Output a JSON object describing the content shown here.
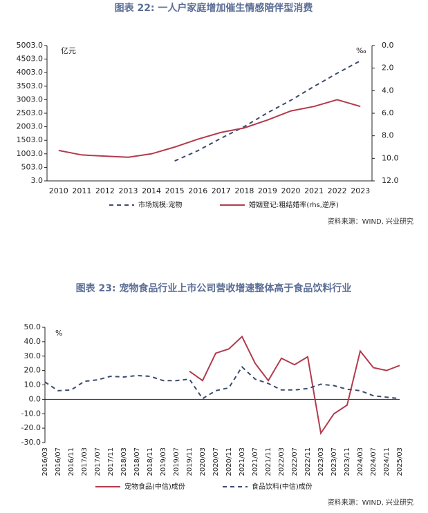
{
  "chart_data": [
    {
      "type": "line",
      "title": "图表 22: 一人户家庭增加催生情感陪伴型消费",
      "y_label": "亿元",
      "y2_label": "‰",
      "categories": [
        "2010",
        "2011",
        "2012",
        "2013",
        "2014",
        "2015",
        "2016",
        "2017",
        "2018",
        "2019",
        "2020",
        "2021",
        "2022",
        "2023"
      ],
      "series": [
        {
          "name": "市场规模:宠物",
          "color": "#3c4a6e",
          "dash": true,
          "axis": "y",
          "values": [
            null,
            null,
            null,
            null,
            null,
            740,
            1120,
            1580,
            2010,
            2520,
            2980,
            3490,
            3980,
            4440
          ]
        },
        {
          "name": "婚姻登记:粗结婚率(rhs,逆序)",
          "color": "#b33a4c",
          "dash": false,
          "axis": "y2",
          "values": [
            9.3,
            9.7,
            9.8,
            9.9,
            9.6,
            9.0,
            8.3,
            7.7,
            7.3,
            6.6,
            5.8,
            5.4,
            4.8,
            5.4
          ]
        }
      ],
      "ylim": [
        3,
        5003
      ],
      "yticks": [
        {
          "value": 3,
          "label": "3.0"
        },
        {
          "value": 503,
          "label": "503.0"
        },
        {
          "value": 1003,
          "label": "1003.0"
        },
        {
          "value": 1503,
          "label": "1503.0"
        },
        {
          "value": 2003,
          "label": "2003.0"
        },
        {
          "value": 2503,
          "label": "2503.0"
        },
        {
          "value": 3003,
          "label": "3003.0"
        },
        {
          "value": 3503,
          "label": "3503.0"
        },
        {
          "value": 4003,
          "label": "4003.0"
        },
        {
          "value": 4503,
          "label": "4503.0"
        },
        {
          "value": 5003,
          "label": "5003.0"
        }
      ],
      "y2lim": [
        12,
        0
      ],
      "y2ticks": [
        {
          "value": 0,
          "label": "0.0"
        },
        {
          "value": 2,
          "label": "2.0"
        },
        {
          "value": 4,
          "label": "4.0"
        },
        {
          "value": 6,
          "label": "6.0"
        },
        {
          "value": 8,
          "label": "8.0"
        },
        {
          "value": 10,
          "label": "10.0"
        },
        {
          "value": 12,
          "label": "12.0"
        }
      ],
      "source": "资料来源：WIND, 兴业研究"
    },
    {
      "type": "line",
      "title": "图表 23: 宠物食品行业上市公司营收增速整体高于食品饮料行业",
      "y_label": "%",
      "categories": [
        "2016/03",
        "2016/07",
        "2016/11",
        "2017/03",
        "2017/07",
        "2017/11",
        "2018/03",
        "2018/07",
        "2018/11",
        "2019/03",
        "2019/07",
        "2019/11",
        "2020/03",
        "2020/07",
        "2020/11",
        "2021/03",
        "2021/07",
        "2021/11",
        "2022/03",
        "2022/07",
        "2022/11",
        "2023/03",
        "2023/07",
        "2023/11",
        "2024/03",
        "2024/07",
        "2024/11",
        "2025/03"
      ],
      "series": [
        {
          "name": "宠物食品(中信)成份",
          "color": "#b33a4c",
          "dash": false,
          "axis": "y",
          "values": [
            null,
            null,
            null,
            null,
            null,
            null,
            null,
            null,
            null,
            null,
            null,
            19.5,
            13,
            32,
            35,
            43.5,
            25,
            13,
            28.5,
            24,
            29.5,
            -23.5,
            -10,
            -4,
            33.5,
            22,
            20,
            23.5
          ]
        },
        {
          "name": "食品饮料(中信)成份",
          "color": "#3c4a6e",
          "dash": true,
          "axis": "y",
          "values": [
            12,
            6,
            6.5,
            12.5,
            13.5,
            16,
            15.5,
            16.5,
            16,
            13,
            13,
            14,
            0.5,
            6,
            8,
            22.5,
            14,
            11,
            6.5,
            6.5,
            7.5,
            10.5,
            9.5,
            7,
            6,
            2.5,
            1.5,
            0.5
          ]
        }
      ],
      "ylim": [
        -30,
        50
      ],
      "yticks": [
        {
          "value": -30,
          "label": "-30.0"
        },
        {
          "value": -20,
          "label": "-20.0"
        },
        {
          "value": -10,
          "label": "-10.0"
        },
        {
          "value": 0,
          "label": "0.0"
        },
        {
          "value": 10,
          "label": "10.0"
        },
        {
          "value": 20,
          "label": "20.0"
        },
        {
          "value": 30,
          "label": "30.0"
        },
        {
          "value": 40,
          "label": "40.0"
        },
        {
          "value": 50,
          "label": "50.0"
        }
      ],
      "source": "资料来源：WIND, 兴业研究"
    }
  ]
}
